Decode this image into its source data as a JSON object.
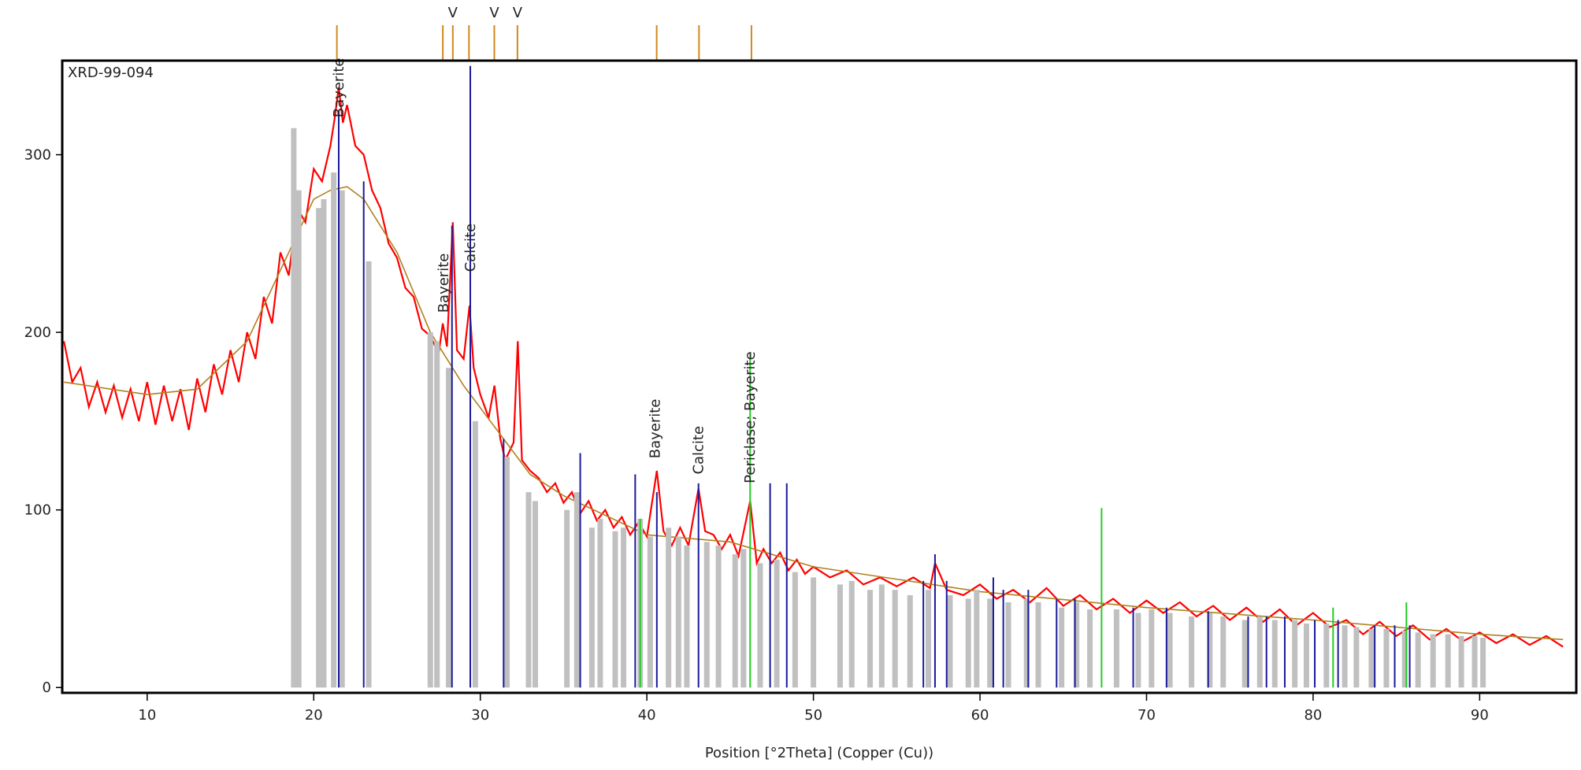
{
  "chart_data": {
    "type": "xrd",
    "title": "XRD-99-094",
    "x_label": "Position [°2Theta] (Copper (Cu))",
    "xlim": [
      4.9,
      95.8
    ],
    "ylim": [
      -3,
      353
    ],
    "xticks": [
      10,
      20,
      30,
      40,
      50,
      60,
      70,
      80,
      90
    ],
    "yticks": [
      0,
      100,
      200,
      300
    ],
    "series": [
      {
        "color": "#ff0000",
        "x": [
          5,
          5.5,
          6,
          6.5,
          7,
          7.5,
          8,
          8.5,
          9,
          9.5,
          10,
          10.5,
          11,
          11.5,
          12,
          12.5,
          13,
          13.5,
          14,
          14.5,
          15,
          15.5,
          16,
          16.5,
          17,
          17.5,
          18,
          18.5,
          19,
          19.5,
          20,
          20.5,
          21,
          21.25,
          21.5,
          21.75,
          22,
          22.5,
          23,
          23.5,
          24,
          24.5,
          25,
          25.5,
          26,
          26.5,
          27,
          27.5,
          27.75,
          28,
          28.35,
          28.6,
          29,
          29.35,
          29.6,
          30,
          30.5,
          30.85,
          31.2,
          31.5,
          32,
          32.25,
          32.5,
          33,
          33.5,
          34,
          34.5,
          35,
          35.5,
          36,
          36.5,
          37,
          37.5,
          38,
          38.5,
          39,
          39.5,
          40,
          40.6,
          41,
          41.5,
          42,
          42.5,
          43.1,
          43.5,
          44,
          44.5,
          45,
          45.5,
          46.2,
          46.6,
          47,
          47.5,
          48,
          48.5,
          49,
          49.5,
          50,
          51,
          52,
          53,
          54,
          55,
          56,
          57,
          57.3,
          58,
          59,
          60,
          61,
          62,
          63,
          64,
          65,
          66,
          67,
          68,
          69,
          70,
          71,
          72,
          73,
          74,
          75,
          76,
          77,
          78,
          79,
          80,
          81,
          82,
          83,
          84,
          85,
          86,
          87,
          88,
          89,
          90,
          91,
          92,
          93,
          94,
          95
        ],
        "values": [
          195,
          172,
          180,
          158,
          172,
          155,
          170,
          152,
          168,
          150,
          172,
          148,
          170,
          150,
          168,
          145,
          174,
          155,
          182,
          165,
          190,
          172,
          200,
          185,
          220,
          205,
          245,
          232,
          270,
          262,
          292,
          285,
          305,
          320,
          338,
          318,
          328,
          305,
          300,
          280,
          270,
          250,
          242,
          225,
          220,
          202,
          198,
          188,
          205,
          192,
          262,
          190,
          185,
          215,
          180,
          165,
          152,
          170,
          140,
          128,
          138,
          195,
          128,
          122,
          118,
          110,
          115,
          104,
          110,
          98,
          105,
          94,
          100,
          90,
          96,
          86,
          93,
          85,
          122,
          88,
          80,
          90,
          80,
          112,
          88,
          86,
          78,
          86,
          74,
          105,
          70,
          78,
          70,
          76,
          66,
          72,
          64,
          68,
          62,
          66,
          58,
          62,
          57,
          62,
          56,
          70,
          55,
          52,
          58,
          50,
          55,
          48,
          56,
          46,
          52,
          44,
          50,
          42,
          49,
          42,
          48,
          40,
          46,
          38,
          45,
          37,
          44,
          35,
          42,
          34,
          38,
          30,
          37,
          29,
          35,
          27,
          33,
          26,
          31,
          25,
          30,
          24,
          29,
          23
        ]
      },
      {
        "color": "#b08020",
        "x": [
          5,
          10,
          13,
          16,
          18,
          20,
          21,
          22,
          23,
          25,
          27,
          29,
          31,
          33,
          35,
          40,
          45,
          50,
          60,
          70,
          80,
          90,
          95
        ],
        "values": [
          172,
          165,
          168,
          195,
          235,
          275,
          280,
          282,
          275,
          245,
          200,
          170,
          145,
          120,
          108,
          86,
          82,
          68,
          54,
          45,
          38,
          30,
          27
        ]
      }
    ],
    "reference_lines": [
      {
        "color": "#c0c0c0",
        "positions": [
          18.8,
          19.1,
          20.3,
          20.6,
          21.2,
          21.7,
          23.3,
          27.0,
          27.4,
          28.1,
          29.7,
          31.6,
          32.9,
          33.3,
          35.2,
          35.8,
          36.7,
          37.2,
          38.1,
          38.6,
          39.6,
          40.2,
          41.3,
          41.9,
          42.4,
          43.6,
          44.3,
          45.3,
          45.8,
          46.8,
          47.8,
          48.9,
          50.0,
          51.6,
          52.3,
          53.4,
          54.1,
          54.9,
          55.8,
          56.9,
          58.2,
          59.3,
          59.8,
          60.6,
          61.7,
          62.8,
          63.5,
          64.9,
          65.8,
          66.6,
          68.2,
          69.5,
          70.3,
          71.4,
          72.7,
          73.8,
          74.6,
          75.9,
          76.8,
          77.7,
          78.9,
          79.6,
          80.8,
          81.9,
          82.6,
          83.5,
          84.4,
          85.5,
          86.3,
          87.2,
          88.1,
          88.9,
          89.7,
          90.2
        ],
        "heights": [
          315,
          280,
          270,
          275,
          290,
          280,
          240,
          200,
          195,
          180,
          150,
          130,
          110,
          105,
          100,
          110,
          90,
          95,
          88,
          90,
          95,
          85,
          90,
          85,
          80,
          82,
          80,
          75,
          78,
          70,
          72,
          65,
          62,
          58,
          60,
          55,
          58,
          55,
          52,
          55,
          52,
          50,
          55,
          50,
          48,
          50,
          48,
          45,
          48,
          44,
          44,
          42,
          44,
          42,
          40,
          42,
          40,
          38,
          40,
          38,
          38,
          36,
          36,
          35,
          34,
          33,
          33,
          32,
          31,
          30,
          30,
          29,
          29,
          28
        ]
      },
      {
        "color": "#1a1a9a",
        "positions": [
          21.5,
          23.0,
          28.3,
          29.4,
          31.4,
          36.0,
          39.3,
          40.6,
          43.1,
          47.4,
          48.4,
          56.6,
          57.3,
          58.0,
          60.8,
          61.4,
          62.9,
          64.6,
          65.7,
          69.2,
          71.2,
          73.7,
          76.1,
          77.2,
          78.3,
          80.1,
          81.5,
          83.7,
          84.9,
          85.8
        ],
        "heights": [
          325,
          285,
          260,
          350,
          140,
          132,
          120,
          110,
          115,
          115,
          115,
          60,
          75,
          60,
          62,
          55,
          55,
          50,
          50,
          45,
          45,
          43,
          40,
          40,
          40,
          38,
          38,
          35,
          35,
          35
        ]
      },
      {
        "color": "#22cc22",
        "positions": [
          39.6,
          46.2,
          67.3,
          81.2,
          85.6
        ],
        "heights": [
          95,
          188,
          101,
          45,
          48
        ]
      }
    ],
    "annotations": [
      {
        "text": "Bayerite",
        "x": 21.5,
        "y": 321,
        "color": "#000000"
      },
      {
        "text": "Bayerite",
        "x": 27.8,
        "y": 211,
        "color": "#000000"
      },
      {
        "text": "Calcite",
        "x": 29.4,
        "y": 234,
        "color": "#1a1a9a"
      },
      {
        "text": "Bayerite",
        "x": 40.5,
        "y": 129,
        "color": "#000000"
      },
      {
        "text": "Calcite",
        "x": 43.1,
        "y": 120,
        "color": "#000000"
      },
      {
        "text": "Periclase; Bayerite",
        "x": 46.2,
        "y": 115,
        "color": "#22aa22"
      }
    ],
    "top_markers": {
      "color": "#d08a20",
      "positions": [
        21.39,
        27.75,
        28.35,
        29.32,
        30.84,
        32.23,
        40.59,
        43.13,
        46.28
      ],
      "labels": [
        null,
        null,
        "V",
        null,
        "V",
        "V",
        null,
        null,
        null
      ]
    }
  }
}
